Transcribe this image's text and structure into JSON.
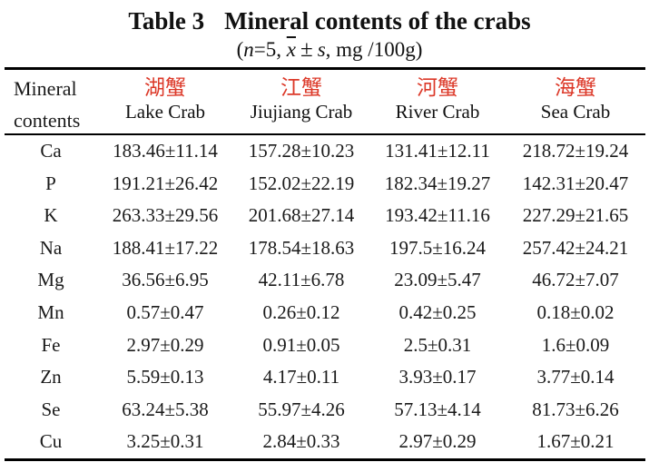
{
  "title": {
    "label": "Table 3",
    "text": "Mineral contents of the crabs"
  },
  "subtitle": {
    "open": "(",
    "n": "n",
    "eq": "=5,",
    "xbar": "x",
    "pm": "±",
    "s": "s",
    "tail": ", mg /100g)"
  },
  "colors": {
    "accent_red": "#dc3929",
    "text": "#1a1a1a",
    "rule": "#000000"
  },
  "table": {
    "row_header": {
      "line1": "Mineral",
      "line2": "contents"
    },
    "columns": [
      {
        "zh": "湖蟹",
        "en": "Lake Crab"
      },
      {
        "zh": "江蟹",
        "en": "Jiujiang Crab"
      },
      {
        "zh": "河蟹",
        "en": "River Crab"
      },
      {
        "zh": "海蟹",
        "en": "Sea Crab"
      }
    ],
    "rows": [
      {
        "mineral": "Ca",
        "values": [
          "183.46±11.14",
          "157.28±10.23",
          "131.41±12.11",
          "218.72±19.24"
        ]
      },
      {
        "mineral": "P",
        "values": [
          "191.21±26.42",
          "152.02±22.19",
          "182.34±19.27",
          "142.31±20.47"
        ]
      },
      {
        "mineral": "K",
        "values": [
          "263.33±29.56",
          "201.68±27.14",
          "193.42±11.16",
          "227.29±21.65"
        ]
      },
      {
        "mineral": "Na",
        "values": [
          "188.41±17.22",
          "178.54±18.63",
          "197.5±16.24",
          "257.42±24.21"
        ]
      },
      {
        "mineral": "Mg",
        "values": [
          "36.56±6.95",
          "42.11±6.78",
          "23.09±5.47",
          "46.72±7.07"
        ]
      },
      {
        "mineral": "Mn",
        "values": [
          "0.57±0.47",
          "0.26±0.12",
          "0.42±0.25",
          "0.18±0.02"
        ]
      },
      {
        "mineral": "Fe",
        "values": [
          "2.97±0.29",
          "0.91±0.05",
          "2.5±0.31",
          "1.6±0.09"
        ]
      },
      {
        "mineral": "Zn",
        "values": [
          "5.59±0.13",
          "4.17±0.11",
          "3.93±0.17",
          "3.77±0.14"
        ]
      },
      {
        "mineral": "Se",
        "values": [
          "63.24±5.38",
          "55.97±4.26",
          "57.13±4.14",
          "81.73±6.26"
        ]
      },
      {
        "mineral": "Cu",
        "values": [
          "3.25±0.31",
          "2.84±0.33",
          "2.97±0.29",
          "1.67±0.21"
        ]
      }
    ]
  }
}
